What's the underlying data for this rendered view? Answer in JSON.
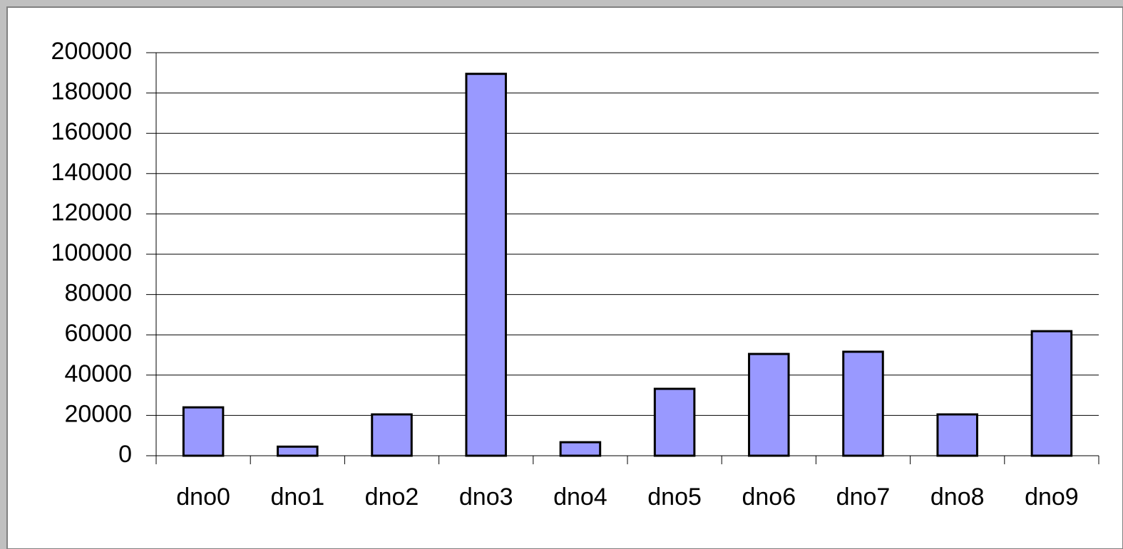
{
  "chart_data": {
    "type": "bar",
    "categories": [
      "dno0",
      "dno1",
      "dno2",
      "dno3",
      "dno4",
      "dno5",
      "dno6",
      "dno7",
      "dno8",
      "dno9"
    ],
    "values": [
      24000,
      4500,
      20500,
      189500,
      6700,
      33200,
      50500,
      51600,
      20500,
      61800
    ],
    "color": "#9999ff",
    "ylim": [
      0,
      200000
    ],
    "yticks": [
      0,
      20000,
      40000,
      60000,
      80000,
      100000,
      120000,
      140000,
      160000,
      180000,
      200000
    ],
    "grid": true
  }
}
